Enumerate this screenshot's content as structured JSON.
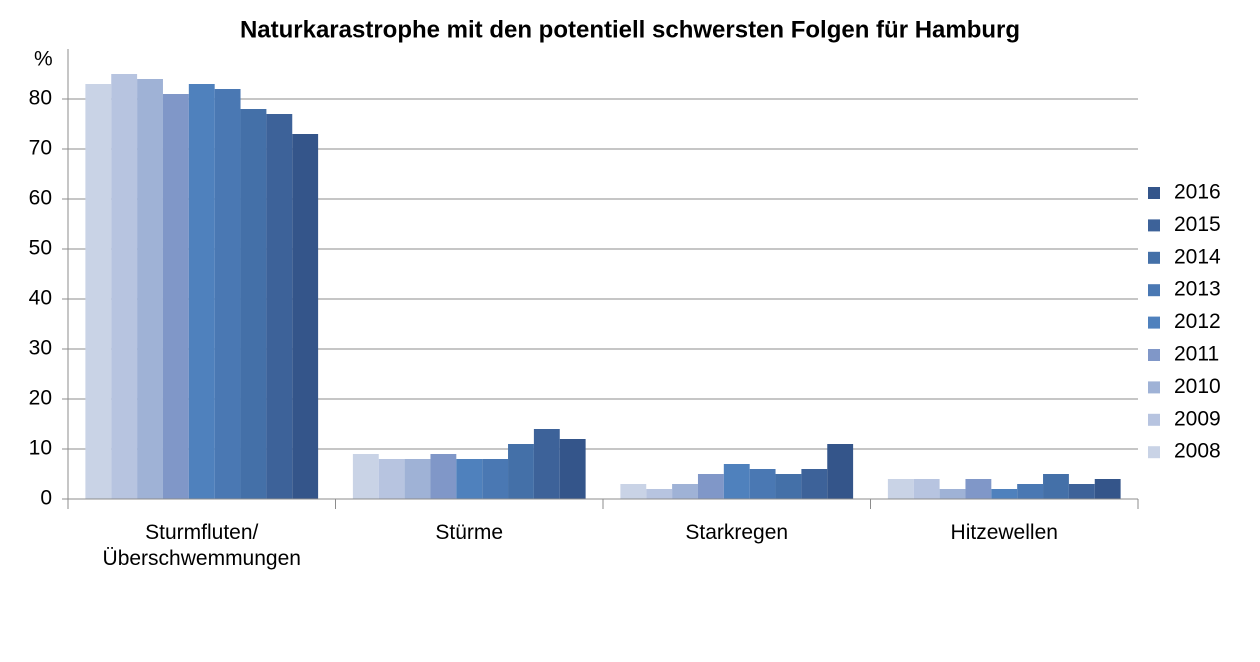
{
  "chart_data": {
    "type": "bar",
    "title": "Naturkarastrophe mit den potentiell schwersten Folgen für Hamburg",
    "y_label": "%",
    "categories": [
      "Sturmfluten/\nÜberschwemmungen",
      "Stürme",
      "Starkregen",
      "Hitzewellen"
    ],
    "series": [
      {
        "name": "2008",
        "color": "#c9d3e6",
        "values": [
          83,
          9,
          3,
          4
        ]
      },
      {
        "name": "2009",
        "color": "#b7c4e0",
        "values": [
          85,
          8,
          2,
          4
        ]
      },
      {
        "name": "2010",
        "color": "#9fb2d6",
        "values": [
          84,
          8,
          3,
          2
        ]
      },
      {
        "name": "2011",
        "color": "#8097c8",
        "values": [
          81,
          9,
          5,
          4
        ]
      },
      {
        "name": "2012",
        "color": "#4f81bd",
        "values": [
          83,
          8,
          7,
          2
        ]
      },
      {
        "name": "2013",
        "color": "#4a78b3",
        "values": [
          82,
          8,
          6,
          3
        ]
      },
      {
        "name": "2014",
        "color": "#4470a8",
        "values": [
          78,
          11,
          5,
          5
        ]
      },
      {
        "name": "2015",
        "color": "#3d6299",
        "values": [
          77,
          14,
          6,
          3
        ]
      },
      {
        "name": "2016",
        "color": "#34558a",
        "values": [
          73,
          12,
          11,
          4
        ]
      }
    ],
    "ylim": [
      0,
      90
    ],
    "yticks": [
      0,
      10,
      20,
      30,
      40,
      50,
      60,
      70,
      80
    ],
    "grid": true,
    "legend": "right"
  }
}
